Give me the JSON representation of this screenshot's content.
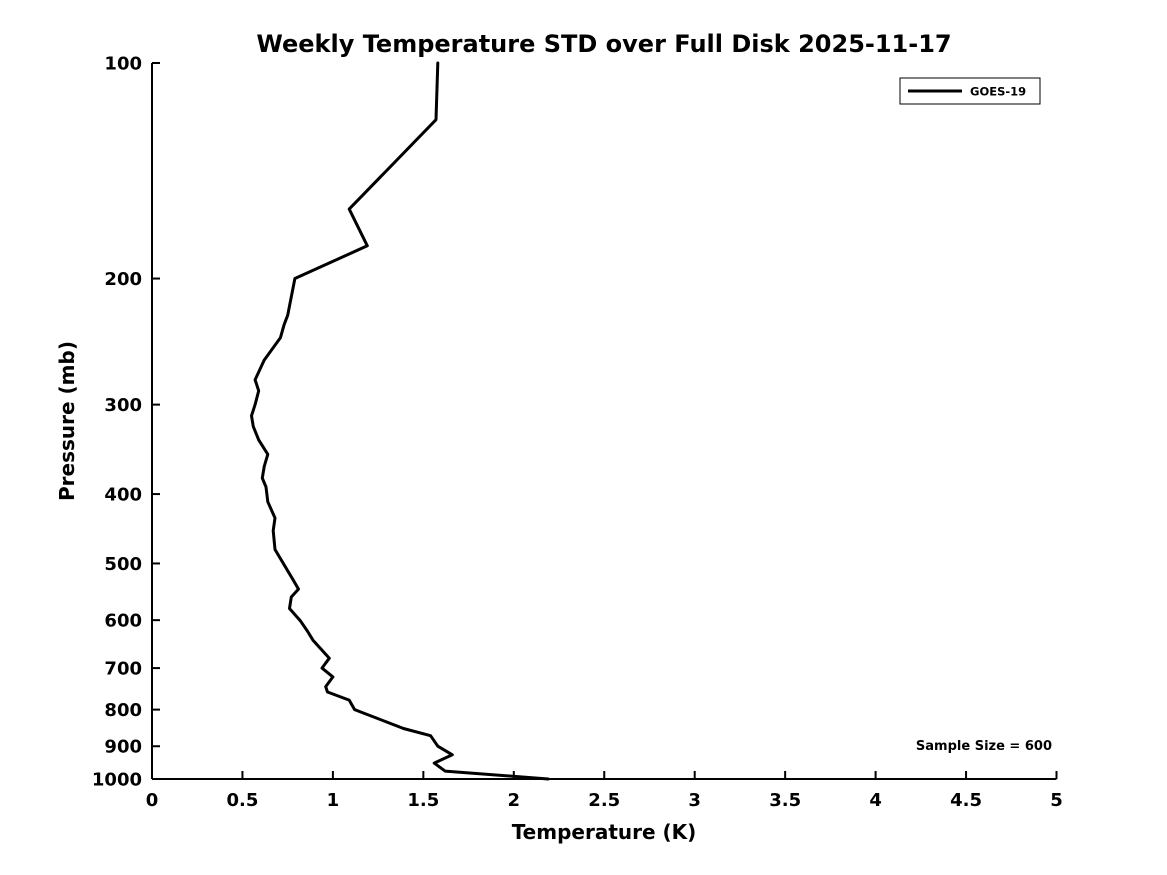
{
  "chart_data": {
    "type": "line",
    "title": "Weekly Temperature STD over Full Disk 2025-11-17",
    "xlabel": "Temperature (K)",
    "ylabel": "Pressure (mb)",
    "xlim": [
      0,
      5
    ],
    "x_ticks": [
      "0",
      "0.5",
      "1",
      "1.5",
      "2",
      "2.5",
      "3",
      "3.5",
      "4",
      "4.5",
      "5"
    ],
    "yscale": "log",
    "ylim": [
      1000,
      100
    ],
    "y_ticks": [
      "100",
      "200",
      "300",
      "400",
      "500",
      "600",
      "700",
      "800",
      "900",
      "1000"
    ],
    "grid": false,
    "legend_position": "upper right",
    "annotation": "Sample Size = 600",
    "axis_color": "#000000",
    "series": [
      {
        "name": "GOES-19",
        "color": "#000000",
        "x_temperature_std_k": [
          1.58,
          1.57,
          1.09,
          1.19,
          0.79,
          0.75,
          0.73,
          0.71,
          0.62,
          0.57,
          0.59,
          0.57,
          0.55,
          0.56,
          0.59,
          0.64,
          0.62,
          0.61,
          0.63,
          0.64,
          0.68,
          0.67,
          0.68,
          0.78,
          0.81,
          0.77,
          0.76,
          0.82,
          0.86,
          0.89,
          0.98,
          0.94,
          1.0,
          0.96,
          0.97,
          1.09,
          1.12,
          1.39,
          1.54,
          1.58,
          1.66,
          1.56,
          1.62,
          2.19
        ],
        "y_pressure_mb": [
          100,
          120,
          160,
          180,
          200,
          225,
          232,
          242,
          260,
          277,
          287,
          300,
          311,
          322,
          336,
          352,
          366,
          380,
          391,
          410,
          432,
          450,
          478,
          527,
          543,
          557,
          578,
          601,
          622,
          640,
          678,
          700,
          720,
          743,
          756,
          776,
          800,
          850,
          870,
          900,
          925,
          950,
          975,
          1000
        ]
      }
    ]
  }
}
